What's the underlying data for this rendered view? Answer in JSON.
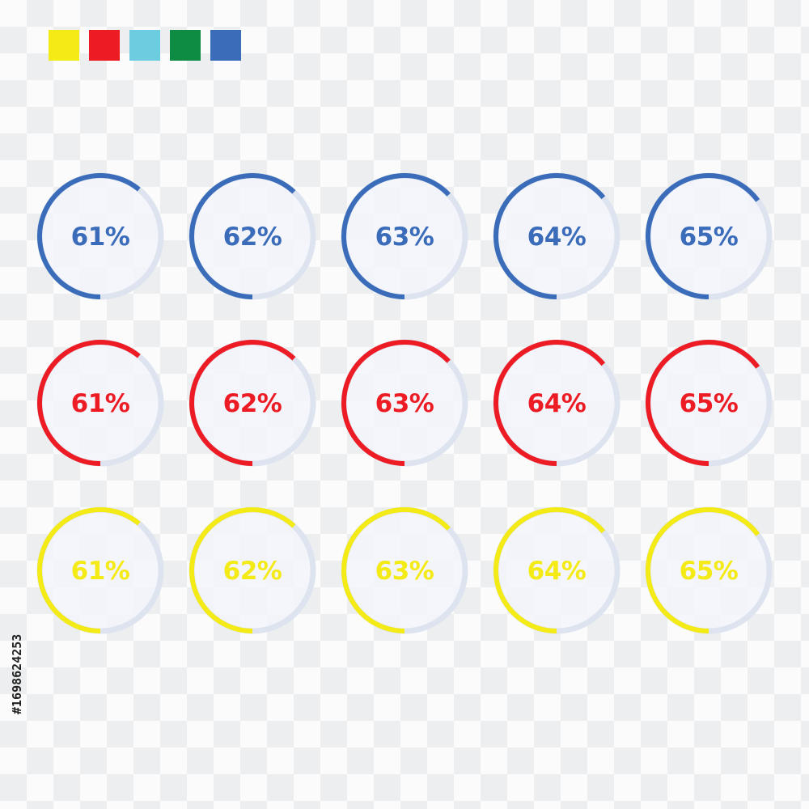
{
  "palette": [
    "#f4ea16",
    "#ed1c24",
    "#6ccde0",
    "#0f8c44",
    "#3a6cb9"
  ],
  "track_color": "#dde4f0",
  "inner_fill": "#f3f5fa",
  "rows": [
    {
      "color_name": "blue",
      "color": "#3a6cb9",
      "items": [
        {
          "value": 61,
          "label": "61%"
        },
        {
          "value": 62,
          "label": "62%"
        },
        {
          "value": 63,
          "label": "63%"
        },
        {
          "value": 64,
          "label": "64%"
        },
        {
          "value": 65,
          "label": "65%"
        }
      ]
    },
    {
      "color_name": "red",
      "color": "#ed1c24",
      "items": [
        {
          "value": 61,
          "label": "61%"
        },
        {
          "value": 62,
          "label": "62%"
        },
        {
          "value": 63,
          "label": "63%"
        },
        {
          "value": 64,
          "label": "64%"
        },
        {
          "value": 65,
          "label": "65%"
        }
      ]
    },
    {
      "color_name": "yellow",
      "color": "#f4ea16",
      "items": [
        {
          "value": 61,
          "label": "61%"
        },
        {
          "value": 62,
          "label": "62%"
        },
        {
          "value": 63,
          "label": "63%"
        },
        {
          "value": 64,
          "label": "64%"
        },
        {
          "value": 65,
          "label": "65%"
        }
      ]
    }
  ],
  "side_text": "#1698624253"
}
